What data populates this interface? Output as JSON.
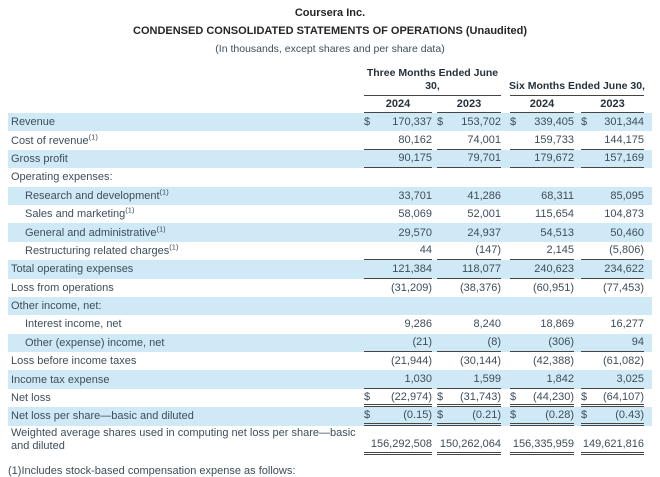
{
  "header": {
    "company": "Coursera Inc.",
    "title": "CONDENSED CONSOLIDATED STATEMENTS OF OPERATIONS (Unaudited)",
    "subtitle": "(In thousands, except shares and per share data)"
  },
  "table": {
    "col_groups": [
      {
        "name": "three-months",
        "lines": [
          "Three Months Ended June",
          "30,"
        ]
      },
      {
        "name": "six-months",
        "lines": [
          "Six Months Ended June 30,"
        ]
      }
    ],
    "years": [
      "2024",
      "2023",
      "2024",
      "2023"
    ],
    "rows": [
      {
        "label": "Revenue",
        "sup": "",
        "indent": false,
        "dollar": true,
        "shade": true,
        "border": "none",
        "values": [
          "170,337",
          "153,702",
          "339,405",
          "301,344"
        ]
      },
      {
        "label": "Cost of revenue",
        "sup": "(1)",
        "indent": false,
        "dollar": false,
        "shade": false,
        "border": "single",
        "values": [
          "80,162",
          "74,001",
          "159,733",
          "144,175"
        ]
      },
      {
        "label": "Gross profit",
        "sup": "",
        "indent": false,
        "dollar": false,
        "shade": true,
        "border": "single",
        "values": [
          "90,175",
          "79,701",
          "179,672",
          "157,169"
        ]
      },
      {
        "label": "Operating expenses:",
        "sup": "",
        "indent": false,
        "dollar": false,
        "shade": false,
        "border": "none",
        "values": null
      },
      {
        "label": "Research and development",
        "sup": "(1)",
        "indent": true,
        "dollar": false,
        "shade": true,
        "border": "none",
        "values": [
          "33,701",
          "41,286",
          "68,311",
          "85,095"
        ]
      },
      {
        "label": "Sales and marketing",
        "sup": "(1)",
        "indent": true,
        "dollar": false,
        "shade": false,
        "border": "none",
        "values": [
          "58,069",
          "52,001",
          "115,654",
          "104,873"
        ]
      },
      {
        "label": "General and administrative",
        "sup": "(1)",
        "indent": true,
        "dollar": false,
        "shade": true,
        "border": "none",
        "values": [
          "29,570",
          "24,937",
          "54,513",
          "50,460"
        ]
      },
      {
        "label": "Restructuring related charges",
        "sup": "(1)",
        "indent": true,
        "dollar": false,
        "shade": false,
        "border": "single",
        "values": [
          "44",
          "(147)",
          "2,145",
          "(5,806)"
        ]
      },
      {
        "label": "Total operating expenses",
        "sup": "",
        "indent": false,
        "dollar": false,
        "shade": true,
        "border": "single",
        "values": [
          "121,384",
          "118,077",
          "240,623",
          "234,622"
        ]
      },
      {
        "label": "Loss from operations",
        "sup": "",
        "indent": false,
        "dollar": false,
        "shade": false,
        "border": "none",
        "values": [
          "(31,209)",
          "(38,376)",
          "(60,951)",
          "(77,453)"
        ]
      },
      {
        "label": "Other income, net:",
        "sup": "",
        "indent": false,
        "dollar": false,
        "shade": true,
        "border": "none",
        "values": null
      },
      {
        "label": "Interest income, net",
        "sup": "",
        "indent": true,
        "dollar": false,
        "shade": false,
        "border": "none",
        "values": [
          "9,286",
          "8,240",
          "18,869",
          "16,277"
        ]
      },
      {
        "label": "Other (expense) income, net",
        "sup": "",
        "indent": true,
        "dollar": false,
        "shade": true,
        "border": "single",
        "values": [
          "(21)",
          "(8)",
          "(306)",
          "94"
        ]
      },
      {
        "label": "Loss before income taxes",
        "sup": "",
        "indent": false,
        "dollar": false,
        "shade": false,
        "border": "none",
        "values": [
          "(21,944)",
          "(30,144)",
          "(42,388)",
          "(61,082)"
        ]
      },
      {
        "label": "Income tax expense",
        "sup": "",
        "indent": false,
        "dollar": false,
        "shade": true,
        "border": "single",
        "values": [
          "1,030",
          "1,599",
          "1,842",
          "3,025"
        ]
      },
      {
        "label": "Net loss",
        "sup": "",
        "indent": false,
        "dollar": true,
        "shade": false,
        "border": "double",
        "values": [
          "(22,974)",
          "(31,743)",
          "(44,230)",
          "(64,107)"
        ]
      },
      {
        "label": "Net loss per share—basic and diluted",
        "sup": "",
        "indent": false,
        "dollar": true,
        "shade": true,
        "border": "double",
        "values": [
          "(0.15)",
          "(0.21)",
          "(0.28)",
          "(0.43)"
        ]
      },
      {
        "label": "Weighted average shares used in computing net loss per share—basic and diluted",
        "sup": "",
        "indent": false,
        "dollar": false,
        "shade": false,
        "border": "double",
        "tall": true,
        "values": [
          "156,292,508",
          "150,262,064",
          "156,335,959",
          "149,621,816"
        ]
      }
    ]
  },
  "footnote": "(1)Includes stock-based compensation expense as follows:",
  "colors": {
    "row_shade": "#cfe9f7",
    "text": "#3e4e5a",
    "heading_text": "#24313c",
    "line": "#454545"
  }
}
